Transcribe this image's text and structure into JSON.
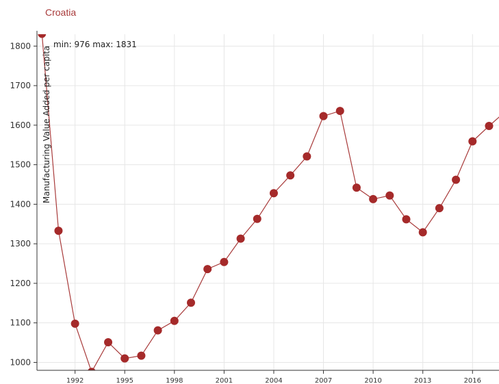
{
  "title": "Croatia",
  "chart_data": {
    "type": "line",
    "title": "Croatia",
    "xlabel": "",
    "ylabel": "Manufacturing Value Added per capita",
    "annotation": "min: 976 max: 1831",
    "xlim": [
      1989.7,
      2017.6
    ],
    "ylim": [
      980,
      1830
    ],
    "y_ticks": [
      1000,
      1100,
      1200,
      1300,
      1400,
      1500,
      1600,
      1700,
      1800
    ],
    "x_ticks": [
      1992,
      1995,
      1998,
      2001,
      2004,
      2007,
      2010,
      2013,
      2016
    ],
    "x_tick_labels": [
      "1992",
      "1995",
      "1998",
      "2001",
      "2004",
      "2007",
      "2010",
      "2013",
      "2016"
    ],
    "grid": true,
    "colors": {
      "line": "#a83a3a",
      "marker": "#a52a2a",
      "grid": "#e6e6e6",
      "axis": "#333333"
    },
    "series": [
      {
        "x": [
          1990,
          1991,
          1992,
          1993,
          1994,
          1995,
          1996,
          1997,
          1998,
          1999,
          2000,
          2001,
          2002,
          2003,
          2004,
          2005,
          2006,
          2007,
          2008,
          2009,
          2010,
          2011,
          2012,
          2013,
          2014,
          2015,
          2016,
          2017,
          2018
        ],
        "values": [
          1831,
          1333,
          1098,
          976,
          1051,
          1010,
          1017,
          1081,
          1105,
          1151,
          1236,
          1254,
          1313,
          1363,
          1428,
          1473,
          1521,
          1623,
          1636,
          1442,
          1413,
          1422,
          1362,
          1329,
          1390,
          1462,
          1559,
          1598,
          1635
        ]
      }
    ]
  }
}
